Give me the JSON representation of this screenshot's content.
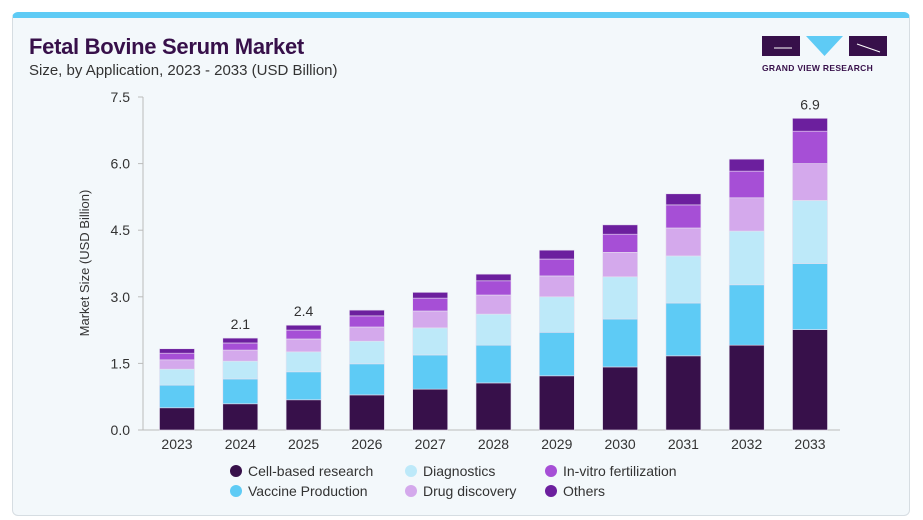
{
  "header": {
    "title": "Fetal Bovine Serum Market",
    "subtitle": "Size, by Application, 2023 - 2033 (USD Billion)",
    "logo_text": "GRAND VIEW RESEARCH"
  },
  "chart_data": {
    "type": "bar",
    "stacked": true,
    "title": "Fetal Bovine Serum Market",
    "subtitle": "Size, by Application, 2023 - 2033 (USD Billion)",
    "xlabel": "",
    "ylabel": "Market Size (USD Billion)",
    "ylim": [
      0,
      7.5
    ],
    "yticks": [
      "0.0",
      "1.5",
      "3.0",
      "4.5",
      "6.0",
      "7.5"
    ],
    "categories": [
      "2023",
      "2024",
      "2025",
      "2026",
      "2027",
      "2028",
      "2029",
      "2030",
      "2031",
      "2032",
      "2033"
    ],
    "series": [
      {
        "name": "Cell-based research",
        "color": "#37104a",
        "values": [
          0.5,
          0.59,
          0.68,
          0.79,
          0.92,
          1.06,
          1.22,
          1.42,
          1.67,
          1.91,
          2.26
        ]
      },
      {
        "name": "Vaccine Production",
        "color": "#5ecbf5",
        "values": [
          0.51,
          0.56,
          0.63,
          0.7,
          0.77,
          0.85,
          0.98,
          1.08,
          1.19,
          1.36,
          1.49
        ]
      },
      {
        "name": "Diagnostics",
        "color": "#bde9f9",
        "values": [
          0.36,
          0.4,
          0.45,
          0.51,
          0.61,
          0.7,
          0.8,
          0.95,
          1.06,
          1.21,
          1.42
        ]
      },
      {
        "name": "Drug discovery",
        "color": "#d4a9ec",
        "values": [
          0.21,
          0.25,
          0.29,
          0.32,
          0.38,
          0.43,
          0.47,
          0.55,
          0.63,
          0.75,
          0.83
        ]
      },
      {
        "name": "In-vitro fertilization",
        "color": "#a64fd6",
        "values": [
          0.15,
          0.16,
          0.2,
          0.25,
          0.29,
          0.32,
          0.38,
          0.41,
          0.52,
          0.6,
          0.73
        ]
      },
      {
        "name": "Others",
        "color": "#6c1f9e",
        "values": [
          0.1,
          0.11,
          0.11,
          0.13,
          0.13,
          0.15,
          0.2,
          0.21,
          0.25,
          0.27,
          0.29
        ]
      }
    ],
    "data_labels": {
      "2024": "2.1",
      "2025": "2.4",
      "2033": "6.9"
    },
    "grid": false,
    "legend_position": "bottom"
  }
}
